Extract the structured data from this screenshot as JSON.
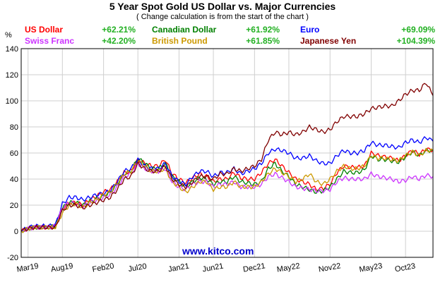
{
  "title": "5 Year Spot Gold US Dollar vs. Major Currencies",
  "subtitle": "( Change calculation is from the start of the chart )",
  "unit_label": "%",
  "watermark": "www.kitco.com",
  "legend": [
    {
      "name": "US Dollar",
      "pct": "+62.21%",
      "color": "#ff0000"
    },
    {
      "name": "Canadian Dollar",
      "pct": "+61.92%",
      "color": "#008000"
    },
    {
      "name": "Euro",
      "pct": "+69.09%",
      "color": "#0000ff"
    },
    {
      "name": "Swiss Franc",
      "pct": "+42.20%",
      "color": "#cc33ff"
    },
    {
      "name": "British Pound",
      "pct": "+61.85%",
      "color": "#cc9900"
    },
    {
      "name": "Japanese Yen",
      "pct": "+104.39%",
      "color": "#800000"
    }
  ],
  "chart_data": {
    "type": "line",
    "title": "5 Year Spot Gold US Dollar vs. Major Currencies",
    "subtitle": "( Change calculation is from the start of the chart )",
    "ylabel": "%",
    "ylim": [
      -20,
      140
    ],
    "yticks": [
      -20,
      0,
      20,
      40,
      60,
      80,
      100,
      120,
      140
    ],
    "xlim": [
      0,
      60
    ],
    "xtick_labels": [
      "Mar19",
      "Aug19",
      "Feb20",
      "Jul20",
      "Jan21",
      "Jun21",
      "Dec21",
      "May22",
      "Nov22",
      "May23",
      "Oct23"
    ],
    "xtick_positions": [
      1,
      6,
      12,
      17,
      23,
      28,
      34,
      39,
      45,
      51,
      56
    ],
    "grid": true,
    "x": [
      0,
      1,
      2,
      3,
      4,
      5,
      6,
      7,
      8,
      9,
      10,
      11,
      12,
      13,
      14,
      15,
      16,
      17,
      18,
      19,
      20,
      21,
      22,
      23,
      24,
      25,
      26,
      27,
      28,
      29,
      30,
      31,
      32,
      33,
      34,
      35,
      36,
      37,
      38,
      39,
      40,
      41,
      42,
      43,
      44,
      45,
      46,
      47,
      48,
      49,
      50,
      51,
      52,
      53,
      54,
      55,
      56,
      57,
      58,
      59,
      60
    ],
    "series": [
      {
        "name": "US Dollar",
        "color": "#ff0000",
        "values": [
          0,
          2,
          3,
          3,
          3,
          4,
          17,
          22,
          22,
          20,
          24,
          27,
          30,
          32,
          38,
          45,
          46,
          55,
          52,
          50,
          50,
          55,
          44,
          40,
          37,
          41,
          44,
          42,
          38,
          40,
          40,
          45,
          41,
          40,
          40,
          45,
          52,
          55,
          50,
          45,
          40,
          38,
          36,
          32,
          33,
          36,
          45,
          50,
          49,
          49,
          50,
          60,
          58,
          57,
          56,
          54,
          58,
          62,
          59,
          63,
          62
        ]
      },
      {
        "name": "Canadian Dollar",
        "color": "#008000",
        "values": [
          0,
          2,
          3,
          3,
          3,
          4,
          18,
          22,
          22,
          20,
          23,
          25,
          27,
          30,
          36,
          44,
          46,
          56,
          52,
          48,
          48,
          52,
          42,
          38,
          34,
          38,
          41,
          40,
          36,
          38,
          38,
          42,
          38,
          37,
          36,
          38,
          48,
          52,
          46,
          42,
          36,
          34,
          32,
          30,
          31,
          34,
          40,
          46,
          45,
          45,
          47,
          58,
          55,
          55,
          54,
          53,
          57,
          61,
          58,
          62,
          62
        ]
      },
      {
        "name": "Euro",
        "color": "#0000ff",
        "values": [
          0,
          3,
          4,
          4,
          4,
          5,
          21,
          26,
          26,
          24,
          26,
          28,
          29,
          31,
          38,
          46,
          48,
          55,
          50,
          48,
          48,
          52,
          42,
          38,
          36,
          42,
          46,
          46,
          42,
          45,
          45,
          48,
          44,
          46,
          48,
          52,
          60,
          63,
          62,
          60,
          56,
          56,
          58,
          54,
          52,
          52,
          58,
          62,
          60,
          60,
          62,
          68,
          66,
          66,
          65,
          64,
          68,
          70,
          68,
          72,
          69
        ]
      },
      {
        "name": "Swiss Franc",
        "color": "#cc33ff",
        "values": [
          0,
          2,
          3,
          3,
          3,
          4,
          18,
          22,
          21,
          19,
          22,
          24,
          26,
          28,
          34,
          42,
          44,
          52,
          48,
          46,
          46,
          48,
          38,
          34,
          32,
          36,
          38,
          38,
          34,
          36,
          36,
          38,
          34,
          34,
          34,
          36,
          42,
          44,
          41,
          38,
          34,
          33,
          32,
          31,
          31,
          32,
          38,
          41,
          40,
          40,
          40,
          44,
          42,
          41,
          40,
          38,
          39,
          42,
          40,
          43,
          42
        ]
      },
      {
        "name": "British Pound",
        "color": "#cc9900",
        "values": [
          0,
          2,
          3,
          3,
          3,
          3,
          14,
          20,
          21,
          18,
          22,
          24,
          28,
          30,
          37,
          44,
          46,
          54,
          50,
          46,
          46,
          48,
          38,
          34,
          30,
          34,
          38,
          38,
          32,
          34,
          34,
          38,
          34,
          34,
          34,
          38,
          44,
          48,
          45,
          42,
          38,
          40,
          44,
          38,
          36,
          40,
          46,
          50,
          48,
          48,
          50,
          58,
          56,
          56,
          55,
          54,
          58,
          61,
          58,
          62,
          62
        ]
      },
      {
        "name": "Japanese Yen",
        "color": "#800000",
        "values": [
          0,
          2,
          3,
          3,
          3,
          3,
          16,
          20,
          20,
          18,
          20,
          22,
          24,
          26,
          32,
          40,
          42,
          52,
          48,
          46,
          46,
          50,
          40,
          36,
          34,
          38,
          42,
          42,
          40,
          44,
          44,
          48,
          46,
          48,
          50,
          55,
          70,
          76,
          74,
          76,
          74,
          76,
          80,
          78,
          76,
          78,
          84,
          88,
          88,
          88,
          90,
          94,
          95,
          96,
          96,
          100,
          105,
          108,
          108,
          114,
          104
        ]
      }
    ]
  }
}
